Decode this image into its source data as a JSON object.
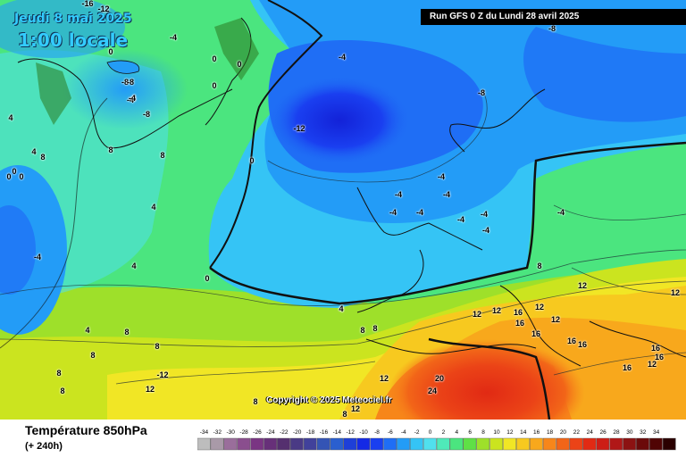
{
  "header": {
    "date": "Jeudi 8 mai 2025",
    "local_time": "1:00 locale",
    "run_info": "Run GFS 0 Z du Lundi 28 avril 2025"
  },
  "copyright": "Copyright © 2025 Meteociel.fr",
  "footer": {
    "title": "Température 850hPa",
    "subtitle": "(+ 240h)"
  },
  "legend": {
    "ticks": [
      "-34",
      "-32",
      "-30",
      "-28",
      "-26",
      "-24",
      "-22",
      "-20",
      "-18",
      "-16",
      "-14",
      "-12",
      "-10",
      "-8",
      "-6",
      "-4",
      "-2",
      "0",
      "2",
      "4",
      "6",
      "8",
      "10",
      "12",
      "14",
      "16",
      "18",
      "20",
      "22",
      "24",
      "26",
      "28",
      "30",
      "32",
      "34"
    ],
    "colors": [
      "#bdbdbd",
      "#a99aa8",
      "#9a6e9b",
      "#8a4e8e",
      "#7a3583",
      "#673079",
      "#55306f",
      "#4a3a85",
      "#41419b",
      "#3454b5",
      "#2a5fcf",
      "#1e3fd8",
      "#1429e6",
      "#1a3ff0",
      "#1f6ef5",
      "#239cf7",
      "#35c4f5",
      "#50e0ee",
      "#4fe9b9",
      "#4be57f",
      "#5fe046",
      "#9ee02a",
      "#cbe41f",
      "#f1e625",
      "#f7c91f",
      "#f8a81c",
      "#f7861a",
      "#f26518",
      "#eb4317",
      "#e12a14",
      "#cd1d16",
      "#b01717",
      "#8c1212",
      "#6b0a0a",
      "#500404",
      "#2a0000"
    ]
  },
  "map_labels": [
    {
      "text": "-16"
    },
    {
      "text": "-12"
    },
    {
      "text": "-8"
    },
    {
      "text": "-4"
    },
    {
      "text": "-4"
    },
    {
      "text": "-4"
    },
    {
      "text": "-8"
    },
    {
      "text": "-4"
    },
    {
      "text": "-8"
    },
    {
      "text": "-4"
    },
    {
      "text": "-12"
    },
    {
      "text": "0"
    },
    {
      "text": "0"
    },
    {
      "text": "0"
    },
    {
      "text": "0"
    },
    {
      "text": "0"
    },
    {
      "text": "0"
    },
    {
      "text": "0"
    },
    {
      "text": "0"
    },
    {
      "text": "0"
    },
    {
      "text": "4"
    },
    {
      "text": "4"
    },
    {
      "text": "4"
    },
    {
      "text": "4"
    },
    {
      "text": "4"
    },
    {
      "text": "4"
    },
    {
      "text": "8"
    },
    {
      "text": "8"
    },
    {
      "text": "8"
    },
    {
      "text": "8"
    },
    {
      "text": "8"
    },
    {
      "text": "8"
    },
    {
      "text": "8"
    },
    {
      "text": "-4"
    },
    {
      "text": "-4"
    },
    {
      "text": "-4"
    },
    {
      "text": "-4"
    },
    {
      "text": "-4"
    },
    {
      "text": "-4"
    },
    {
      "text": "-4"
    },
    {
      "text": "-4"
    },
    {
      "text": "-4"
    },
    {
      "text": "-4"
    },
    {
      "text": "-8"
    },
    {
      "text": "-8"
    },
    {
      "text": "8"
    },
    {
      "text": "8"
    },
    {
      "text": "12"
    },
    {
      "text": "12"
    },
    {
      "text": "12"
    },
    {
      "text": "12"
    },
    {
      "text": "12"
    },
    {
      "text": "16"
    },
    {
      "text": "16"
    },
    {
      "text": "16"
    },
    {
      "text": "16"
    },
    {
      "text": "12"
    },
    {
      "text": "16"
    },
    {
      "text": "16"
    },
    {
      "text": "12"
    },
    {
      "text": "16"
    },
    {
      "text": "16"
    },
    {
      "text": "20"
    },
    {
      "text": "24"
    },
    {
      "text": "12"
    },
    {
      "text": "-12"
    },
    {
      "text": "12"
    },
    {
      "text": "8"
    },
    {
      "text": "12"
    },
    {
      "text": "8"
    },
    {
      "text": "8"
    },
    {
      "text": "8"
    },
    {
      "text": "4"
    }
  ]
}
